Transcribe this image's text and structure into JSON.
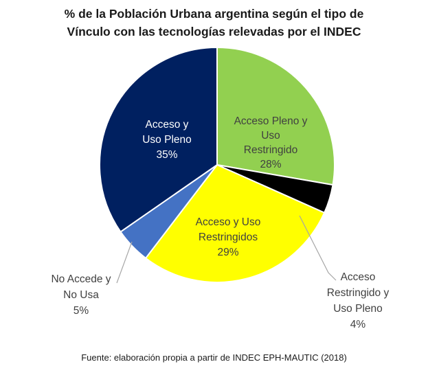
{
  "chart_data": {
    "type": "pie",
    "title_lines": [
      "% de la Población Urbana argentina según el tipo de",
      "Vínculo con las tecnologías relevadas por el INDEC"
    ],
    "slices": [
      {
        "label_lines": [
          "Acceso Pleno y",
          "Uso",
          "Restringido"
        ],
        "value": 28,
        "value_label": "28%",
        "color": "#92D050",
        "text_color": "#404040"
      },
      {
        "label_lines": [
          "Acceso",
          "Restringido y",
          "Uso Pleno"
        ],
        "value": 4,
        "value_label": "4%",
        "color": "#000000",
        "text_color": "#404040"
      },
      {
        "label_lines": [
          "Acceso y Uso",
          "Restringidos"
        ],
        "value": 29,
        "value_label": "29%",
        "color": "#FFFF00",
        "text_color": "#404040"
      },
      {
        "label_lines": [
          "No Accede y",
          "No Usa"
        ],
        "value": 5,
        "value_label": "5%",
        "color": "#4472C4",
        "text_color": "#404040"
      },
      {
        "label_lines": [
          "Acceso y",
          "Uso Pleno"
        ],
        "value": 35,
        "value_label": "35%",
        "color": "#002060",
        "text_color": "#ffffff"
      }
    ],
    "source": "Fuente: elaboración propia a partir de INDEC EPH-MAUTIC (2018)"
  }
}
